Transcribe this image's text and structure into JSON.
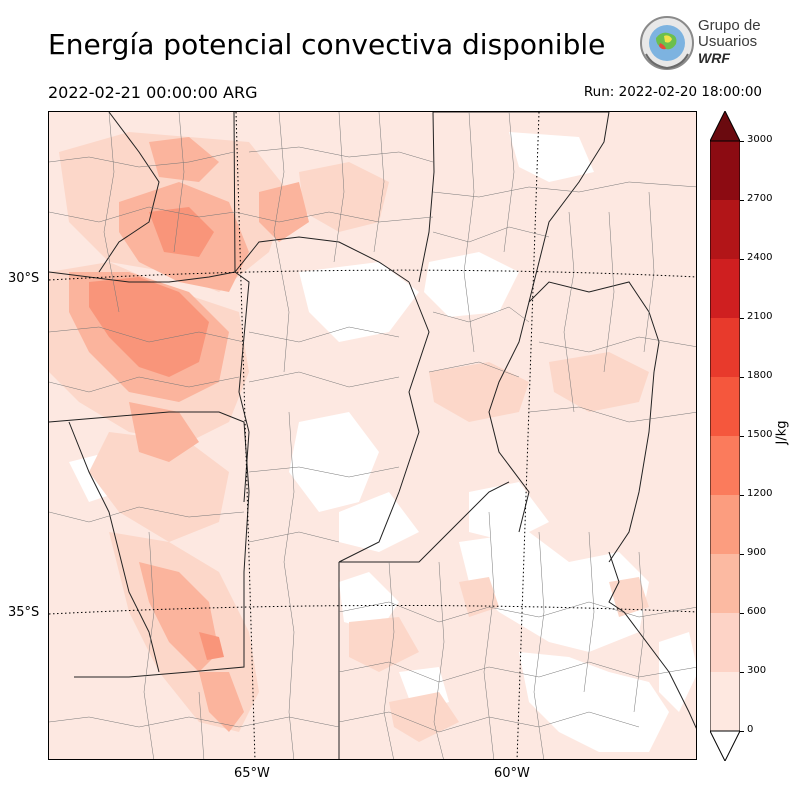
{
  "header": {
    "title": "Energía potencial convectiva disponible",
    "valid_time": "2022-02-21 00:00:00 ARG",
    "run_time": "Run: 2022-02-20 18:00:00"
  },
  "logo": {
    "line1": "Grupo de",
    "line2": "Usuarios",
    "line3": "WRF"
  },
  "axes": {
    "latitudes": [
      "30°S",
      "35°S"
    ],
    "longitudes": [
      "65°W",
      "60°W"
    ]
  },
  "colorbar": {
    "unit": "J/kg",
    "ticks": [
      "0",
      "300",
      "600",
      "900",
      "1200",
      "1500",
      "1800",
      "2100",
      "2400",
      "2700",
      "3000"
    ],
    "colors": [
      "#fee8e0",
      "#fdd3c6",
      "#fcbaa2",
      "#fc9d7f",
      "#fb7b5c",
      "#f5573d",
      "#e83a2c",
      "#cf1f20",
      "#b21518",
      "#8c0b12",
      "#6a0a0f"
    ]
  },
  "map_colors": {
    "background": "#fde8e1",
    "blank": "#ffffff",
    "light": "#fcd7c9",
    "medium": "#fbb49d",
    "strong": "#f9957a"
  }
}
